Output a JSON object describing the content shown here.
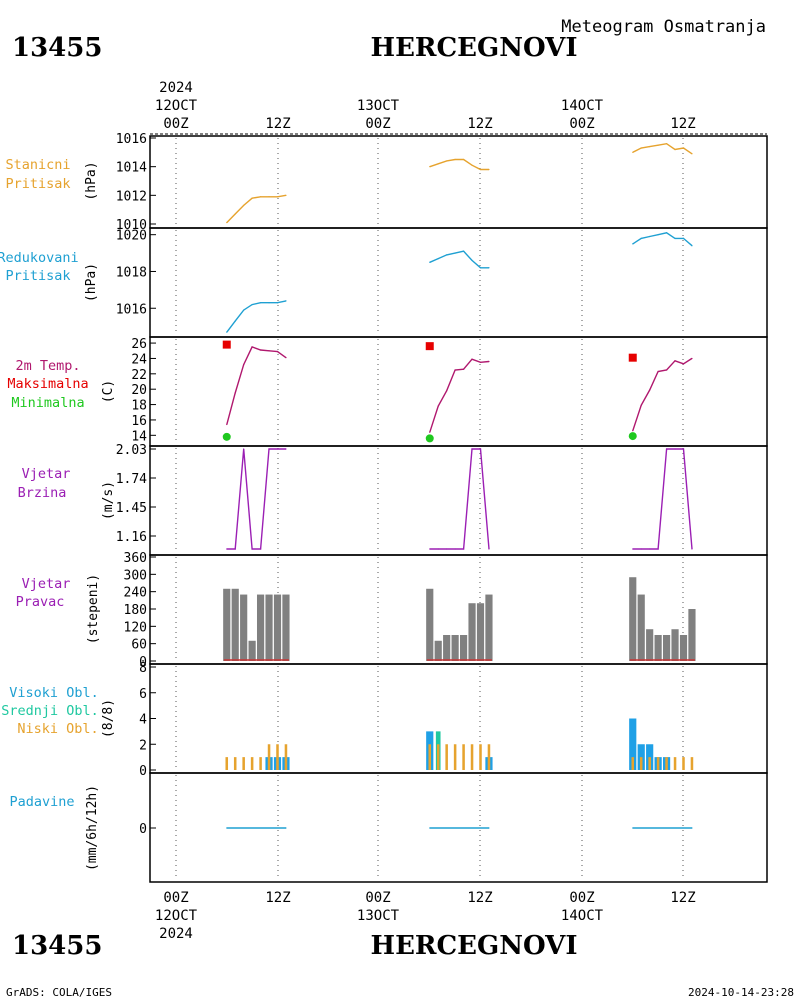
{
  "header": {
    "station_id": "13455",
    "station_name": "HERCEGNOVI",
    "subtitle": "Meteogram Osmatranja"
  },
  "footer": {
    "credit": "GrADS: COLA/IGES",
    "timestamp": "2024-10-14-23:28"
  },
  "time_axis": {
    "year": "2024",
    "days": [
      "12OCT",
      "13OCT",
      "14OCT"
    ],
    "hour_00": "00Z",
    "hour_12": "12Z",
    "note": "x values are hours since 12OCT 00Z"
  },
  "panel_labels": {
    "pressure_station": [
      "Stanicni",
      "Pritisak"
    ],
    "pressure_reduced": [
      "Redukovani",
      "Pritisak"
    ],
    "temperature": [
      "2m Temp.",
      "Maksimalna",
      "Minimalna"
    ],
    "wind_speed": [
      "Vjetar",
      "Brzina"
    ],
    "wind_dir": [
      "Vjetar",
      "Pravac"
    ],
    "clouds": [
      "Visoki Obl.",
      "Srednji Obl.",
      "Niski Obl."
    ],
    "precip": [
      "Padavine"
    ]
  },
  "colors": {
    "station_pressure": "#e6a32e",
    "reduced_pressure": "#1fa0d2",
    "temperature": "#b0186e",
    "max_temp": "#e60000",
    "min_temp": "#1fc81f",
    "wind_speed": "#9b1fb4",
    "wind_dir": "#808080",
    "wind_dir_base": "#c83232",
    "cloud_high": "#1fa0e6",
    "cloud_mid": "#1fc8a0",
    "cloud_low": "#e6a32e",
    "precip": "#1fa0d2"
  },
  "chart_data": [
    {
      "type": "line",
      "panel": "pressure_station",
      "ylabel": "(hPa)",
      "ylim": [
        1010,
        1016
      ],
      "yticks": [
        1010,
        1012,
        1014,
        1016
      ],
      "series": [
        {
          "segments": [
            {
              "x": [
                6,
                7,
                8,
                9,
                10,
                11,
                12,
                13
              ],
              "y": [
                1010.1,
                1010.7,
                1011.3,
                1011.8,
                1011.9,
                1011.9,
                1011.9,
                1012.0
              ]
            },
            {
              "x": [
                30,
                31,
                32,
                33,
                34,
                35,
                36,
                37
              ],
              "y": [
                1014.0,
                1014.2,
                1014.4,
                1014.5,
                1014.5,
                1014.1,
                1013.8,
                1013.8
              ]
            },
            {
              "x": [
                54,
                55,
                56,
                57,
                58,
                59,
                60,
                61
              ],
              "y": [
                1015.0,
                1015.3,
                1015.4,
                1015.5,
                1015.6,
                1015.2,
                1015.3,
                1014.9
              ]
            }
          ]
        }
      ]
    },
    {
      "type": "line",
      "panel": "pressure_reduced",
      "ylabel": "(hPa)",
      "ylim": [
        1014.6,
        1020.2
      ],
      "yticks": [
        1016,
        1018,
        1020
      ],
      "series": [
        {
          "segments": [
            {
              "x": [
                6,
                7,
                8,
                9,
                10,
                11,
                12,
                13
              ],
              "y": [
                1014.7,
                1015.3,
                1015.9,
                1016.2,
                1016.3,
                1016.3,
                1016.3,
                1016.4
              ]
            },
            {
              "x": [
                30,
                31,
                32,
                33,
                34,
                35,
                36,
                37
              ],
              "y": [
                1018.5,
                1018.7,
                1018.9,
                1019.0,
                1019.1,
                1018.6,
                1018.2,
                1018.2
              ]
            },
            {
              "x": [
                54,
                55,
                56,
                57,
                58,
                59,
                60,
                61
              ],
              "y": [
                1019.5,
                1019.8,
                1019.9,
                1020.0,
                1020.1,
                1019.8,
                1019.8,
                1019.4
              ]
            }
          ]
        }
      ]
    },
    {
      "type": "line",
      "panel": "temperature",
      "ylabel": "(C)",
      "ylim": [
        13,
        26.4
      ],
      "yticks": [
        14,
        16,
        18,
        20,
        22,
        24,
        26
      ],
      "series": [
        {
          "segments": [
            {
              "x": [
                6,
                7,
                8,
                9,
                10,
                11,
                12,
                13
              ],
              "y": [
                15.4,
                19.5,
                23.2,
                25.5,
                25.1,
                25.0,
                24.9,
                24.1
              ]
            },
            {
              "x": [
                30,
                31,
                32,
                33,
                34,
                35,
                36,
                37
              ],
              "y": [
                14.4,
                17.8,
                19.8,
                22.5,
                22.6,
                23.9,
                23.5,
                23.6
              ]
            },
            {
              "x": [
                54,
                55,
                56,
                57,
                58,
                59,
                60,
                61
              ],
              "y": [
                14.6,
                17.9,
                19.9,
                22.3,
                22.5,
                23.7,
                23.3,
                24.0
              ]
            }
          ]
        }
      ],
      "max_markers": [
        {
          "x": 6,
          "y": 25.8
        },
        {
          "x": 30,
          "y": 25.6
        },
        {
          "x": 54,
          "y": 24.1
        }
      ],
      "min_markers": [
        {
          "x": 6,
          "y": 13.8
        },
        {
          "x": 30,
          "y": 13.6
        },
        {
          "x": 54,
          "y": 13.9
        }
      ]
    },
    {
      "type": "line",
      "panel": "wind_speed",
      "ylabel": "(m/s)",
      "ylim": [
        1.0,
        2.03
      ],
      "yticks": [
        1.16,
        1.45,
        1.74,
        2.03
      ],
      "series": [
        {
          "segments": [
            {
              "x": [
                6,
                7,
                8,
                9,
                10,
                11,
                12,
                13
              ],
              "y": [
                1.03,
                1.03,
                2.03,
                1.03,
                1.03,
                2.03,
                2.03,
                2.03
              ]
            },
            {
              "x": [
                30,
                31,
                32,
                33,
                34,
                35,
                36,
                37
              ],
              "y": [
                1.03,
                1.03,
                1.03,
                1.03,
                1.03,
                2.03,
                2.03,
                1.03
              ]
            },
            {
              "x": [
                54,
                55,
                56,
                57,
                58,
                59,
                60,
                61
              ],
              "y": [
                1.03,
                1.03,
                1.03,
                1.03,
                2.03,
                2.03,
                2.03,
                1.03
              ]
            }
          ]
        }
      ]
    },
    {
      "type": "bar",
      "panel": "wind_dir",
      "ylabel": "(stepeni)",
      "ylim": [
        0,
        360
      ],
      "yticks": [
        0,
        60,
        120,
        180,
        240,
        300,
        360
      ],
      "x": [
        6,
        7,
        8,
        9,
        10,
        11,
        12,
        13,
        30,
        31,
        32,
        33,
        34,
        35,
        36,
        37,
        54,
        55,
        56,
        57,
        58,
        59,
        60,
        61
      ],
      "values": [
        250,
        250,
        230,
        70,
        230,
        230,
        230,
        230,
        250,
        70,
        90,
        90,
        90,
        200,
        200,
        230,
        290,
        230,
        110,
        90,
        90,
        110,
        90,
        180
      ]
    },
    {
      "type": "bar",
      "panel": "clouds",
      "ylabel": "(8/8)",
      "ylim": [
        0,
        8
      ],
      "yticks": [
        0,
        2,
        4,
        6,
        8
      ],
      "x": [
        6,
        7,
        8,
        9,
        10,
        11,
        12,
        13,
        30,
        31,
        32,
        33,
        34,
        35,
        36,
        37,
        54,
        55,
        56,
        57,
        58,
        59,
        60,
        61
      ],
      "series": [
        {
          "name": "Visoki Obl.",
          "values": [
            0,
            0,
            0,
            0,
            0,
            1,
            1,
            1,
            3,
            0,
            0,
            0,
            0,
            0,
            0,
            1,
            4,
            2,
            2,
            1,
            1,
            0,
            0,
            0
          ]
        },
        {
          "name": "Srednji Obl.",
          "values": [
            0,
            0,
            0,
            0,
            0,
            0,
            0,
            0,
            0,
            3,
            0,
            0,
            0,
            0,
            0,
            0,
            0,
            0,
            0,
            0,
            0,
            0,
            0,
            0
          ]
        },
        {
          "name": "Niski Obl.",
          "values": [
            1,
            1,
            1,
            1,
            1,
            2,
            2,
            2,
            2,
            2,
            2,
            2,
            2,
            2,
            2,
            2,
            1,
            1,
            1,
            1,
            1,
            1,
            1,
            1
          ]
        }
      ]
    },
    {
      "type": "line",
      "panel": "precip",
      "ylabel": "(mm/6h/12h)",
      "ylim": [
        -5,
        5
      ],
      "yticks": [
        0
      ],
      "series": [
        {
          "segments": [
            {
              "x": [
                6,
                13
              ],
              "y": [
                0,
                0
              ]
            },
            {
              "x": [
                30,
                37
              ],
              "y": [
                0,
                0
              ]
            },
            {
              "x": [
                54,
                61
              ],
              "y": [
                0,
                0
              ]
            }
          ]
        }
      ]
    }
  ]
}
